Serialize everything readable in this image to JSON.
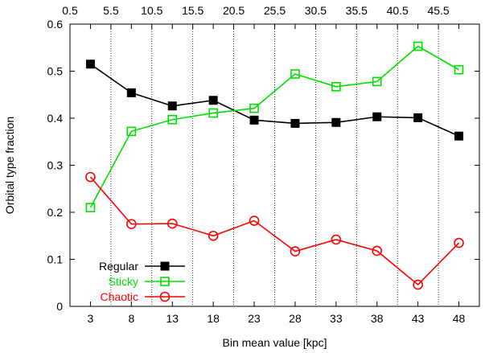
{
  "chart_data": {
    "type": "line",
    "xlabel": "Bin mean value [kpc]",
    "ylabel": "Orbital type fraction",
    "x": [
      3,
      8,
      13,
      18,
      23,
      28,
      33,
      38,
      43,
      48
    ],
    "xlim": [
      0.5,
      50.5
    ],
    "ylim": [
      0,
      0.6
    ],
    "x_ticks": [
      "3",
      "8",
      "13",
      "18",
      "23",
      "28",
      "33",
      "38",
      "43",
      "48"
    ],
    "y_ticks": [
      "0",
      "0.1",
      "0.2",
      "0.3",
      "0.4",
      "0.5",
      "0.6"
    ],
    "top_ticks": [
      "0.5",
      "5.5",
      "10.5",
      "15.5",
      "20.5",
      "25.5",
      "30.5",
      "35.5",
      "40.5",
      "45.5"
    ],
    "bin_edges": [
      5.5,
      10.5,
      15.5,
      20.5,
      25.5,
      30.5,
      35.5,
      40.5,
      45.5
    ],
    "legend_position": "bottom-left",
    "series": [
      {
        "name": "Regular",
        "color": "#000000",
        "marker": "filled-square",
        "values": [
          0.515,
          0.454,
          0.426,
          0.438,
          0.396,
          0.389,
          0.391,
          0.403,
          0.401,
          0.362
        ]
      },
      {
        "name": "Sticky",
        "color": "#00e000",
        "marker": "open-square",
        "values": [
          0.21,
          0.372,
          0.397,
          0.411,
          0.421,
          0.494,
          0.467,
          0.478,
          0.553,
          0.503
        ]
      },
      {
        "name": "Chaotic",
        "color": "#ff0000",
        "marker": "open-circle",
        "values": [
          0.275,
          0.175,
          0.176,
          0.15,
          0.182,
          0.117,
          0.142,
          0.118,
          0.046,
          0.135
        ]
      }
    ]
  }
}
